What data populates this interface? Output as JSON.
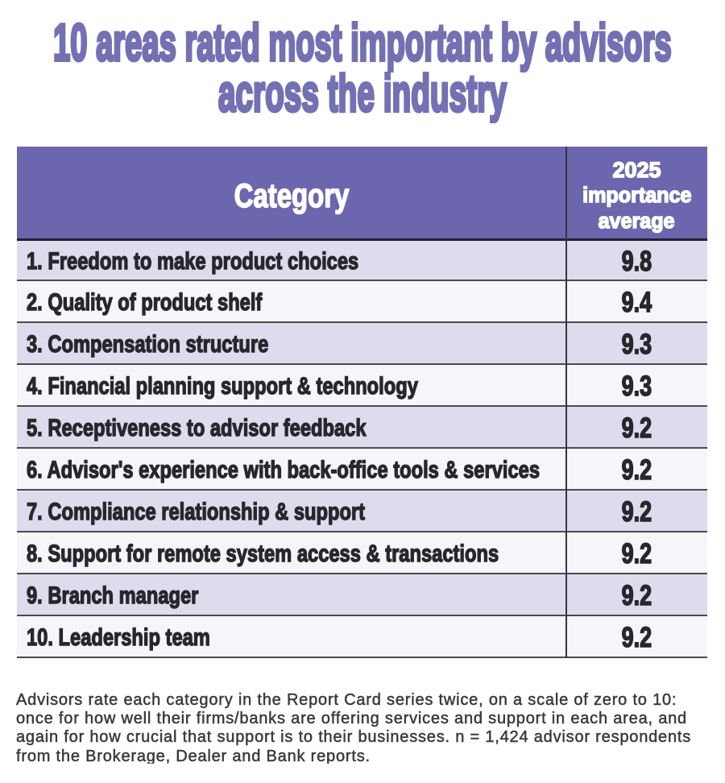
{
  "title": {
    "line1": "10 areas rated most important by advisors",
    "line2": "across the industry"
  },
  "table": {
    "header": {
      "category": "Category",
      "value_line1": "2025",
      "value_line2": "importance",
      "value_line3": "average"
    },
    "rows": [
      {
        "label": "1. Freedom to make product choices",
        "value": "9.8"
      },
      {
        "label": "2. Quality of product shelf",
        "value": "9.4"
      },
      {
        "label": "3. Compensation structure",
        "value": "9.3"
      },
      {
        "label": "4. Financial planning support & technology",
        "value": "9.3"
      },
      {
        "label": "5. Receptiveness to advisor feedback",
        "value": "9.2"
      },
      {
        "label": "6. Advisor's experience with back-office tools & services",
        "value": "9.2"
      },
      {
        "label": "7. Compliance relationship & support",
        "value": "9.2"
      },
      {
        "label": "8. Support for remote system access & transactions",
        "value": "9.2"
      },
      {
        "label": "9. Branch manager",
        "value": "9.2"
      },
      {
        "label": "10. Leadership team",
        "value": "9.2"
      }
    ]
  },
  "footnote": {
    "lines": [
      "Advisors rate each category in the Report Card series twice, on a scale of zero to 10:",
      "once for how well their firms/banks are offering services and support in each area, and",
      "again for how crucial that support is to their businesses. n = 1,424 advisor respondents",
      "from the Brokerage, Dealer and Bank reports."
    ]
  },
  "colors": {
    "title_purple": "#7470b4",
    "header_purple": "#6b66ad",
    "row_lavender": "#dedbec",
    "row_white": "#f6f5fa",
    "row_text": "#27272d",
    "line_dark": "#4a4954"
  },
  "chart_data": {
    "type": "table",
    "title": "10 areas rated most important by advisors across the industry",
    "columns": [
      "Category",
      "2025 importance average"
    ],
    "categories": [
      "Freedom to make product choices",
      "Quality of product shelf",
      "Compensation structure",
      "Financial planning support & technology",
      "Receptiveness to advisor feedback",
      "Advisor's experience with back-office tools & services",
      "Compliance relationship & support",
      "Support for remote system access & transactions",
      "Branch manager",
      "Leadership team"
    ],
    "values": [
      9.8,
      9.4,
      9.3,
      9.3,
      9.2,
      9.2,
      9.2,
      9.2,
      9.2,
      9.2
    ],
    "note": "Advisors rate each category in the Report Card series twice, on a scale of zero to 10: once for how well their firms/banks are offering services and support in each area, and again for how crucial that support is to their businesses. n = 1,424 advisor respondents from the Brokerage, Dealer and Bank reports."
  }
}
